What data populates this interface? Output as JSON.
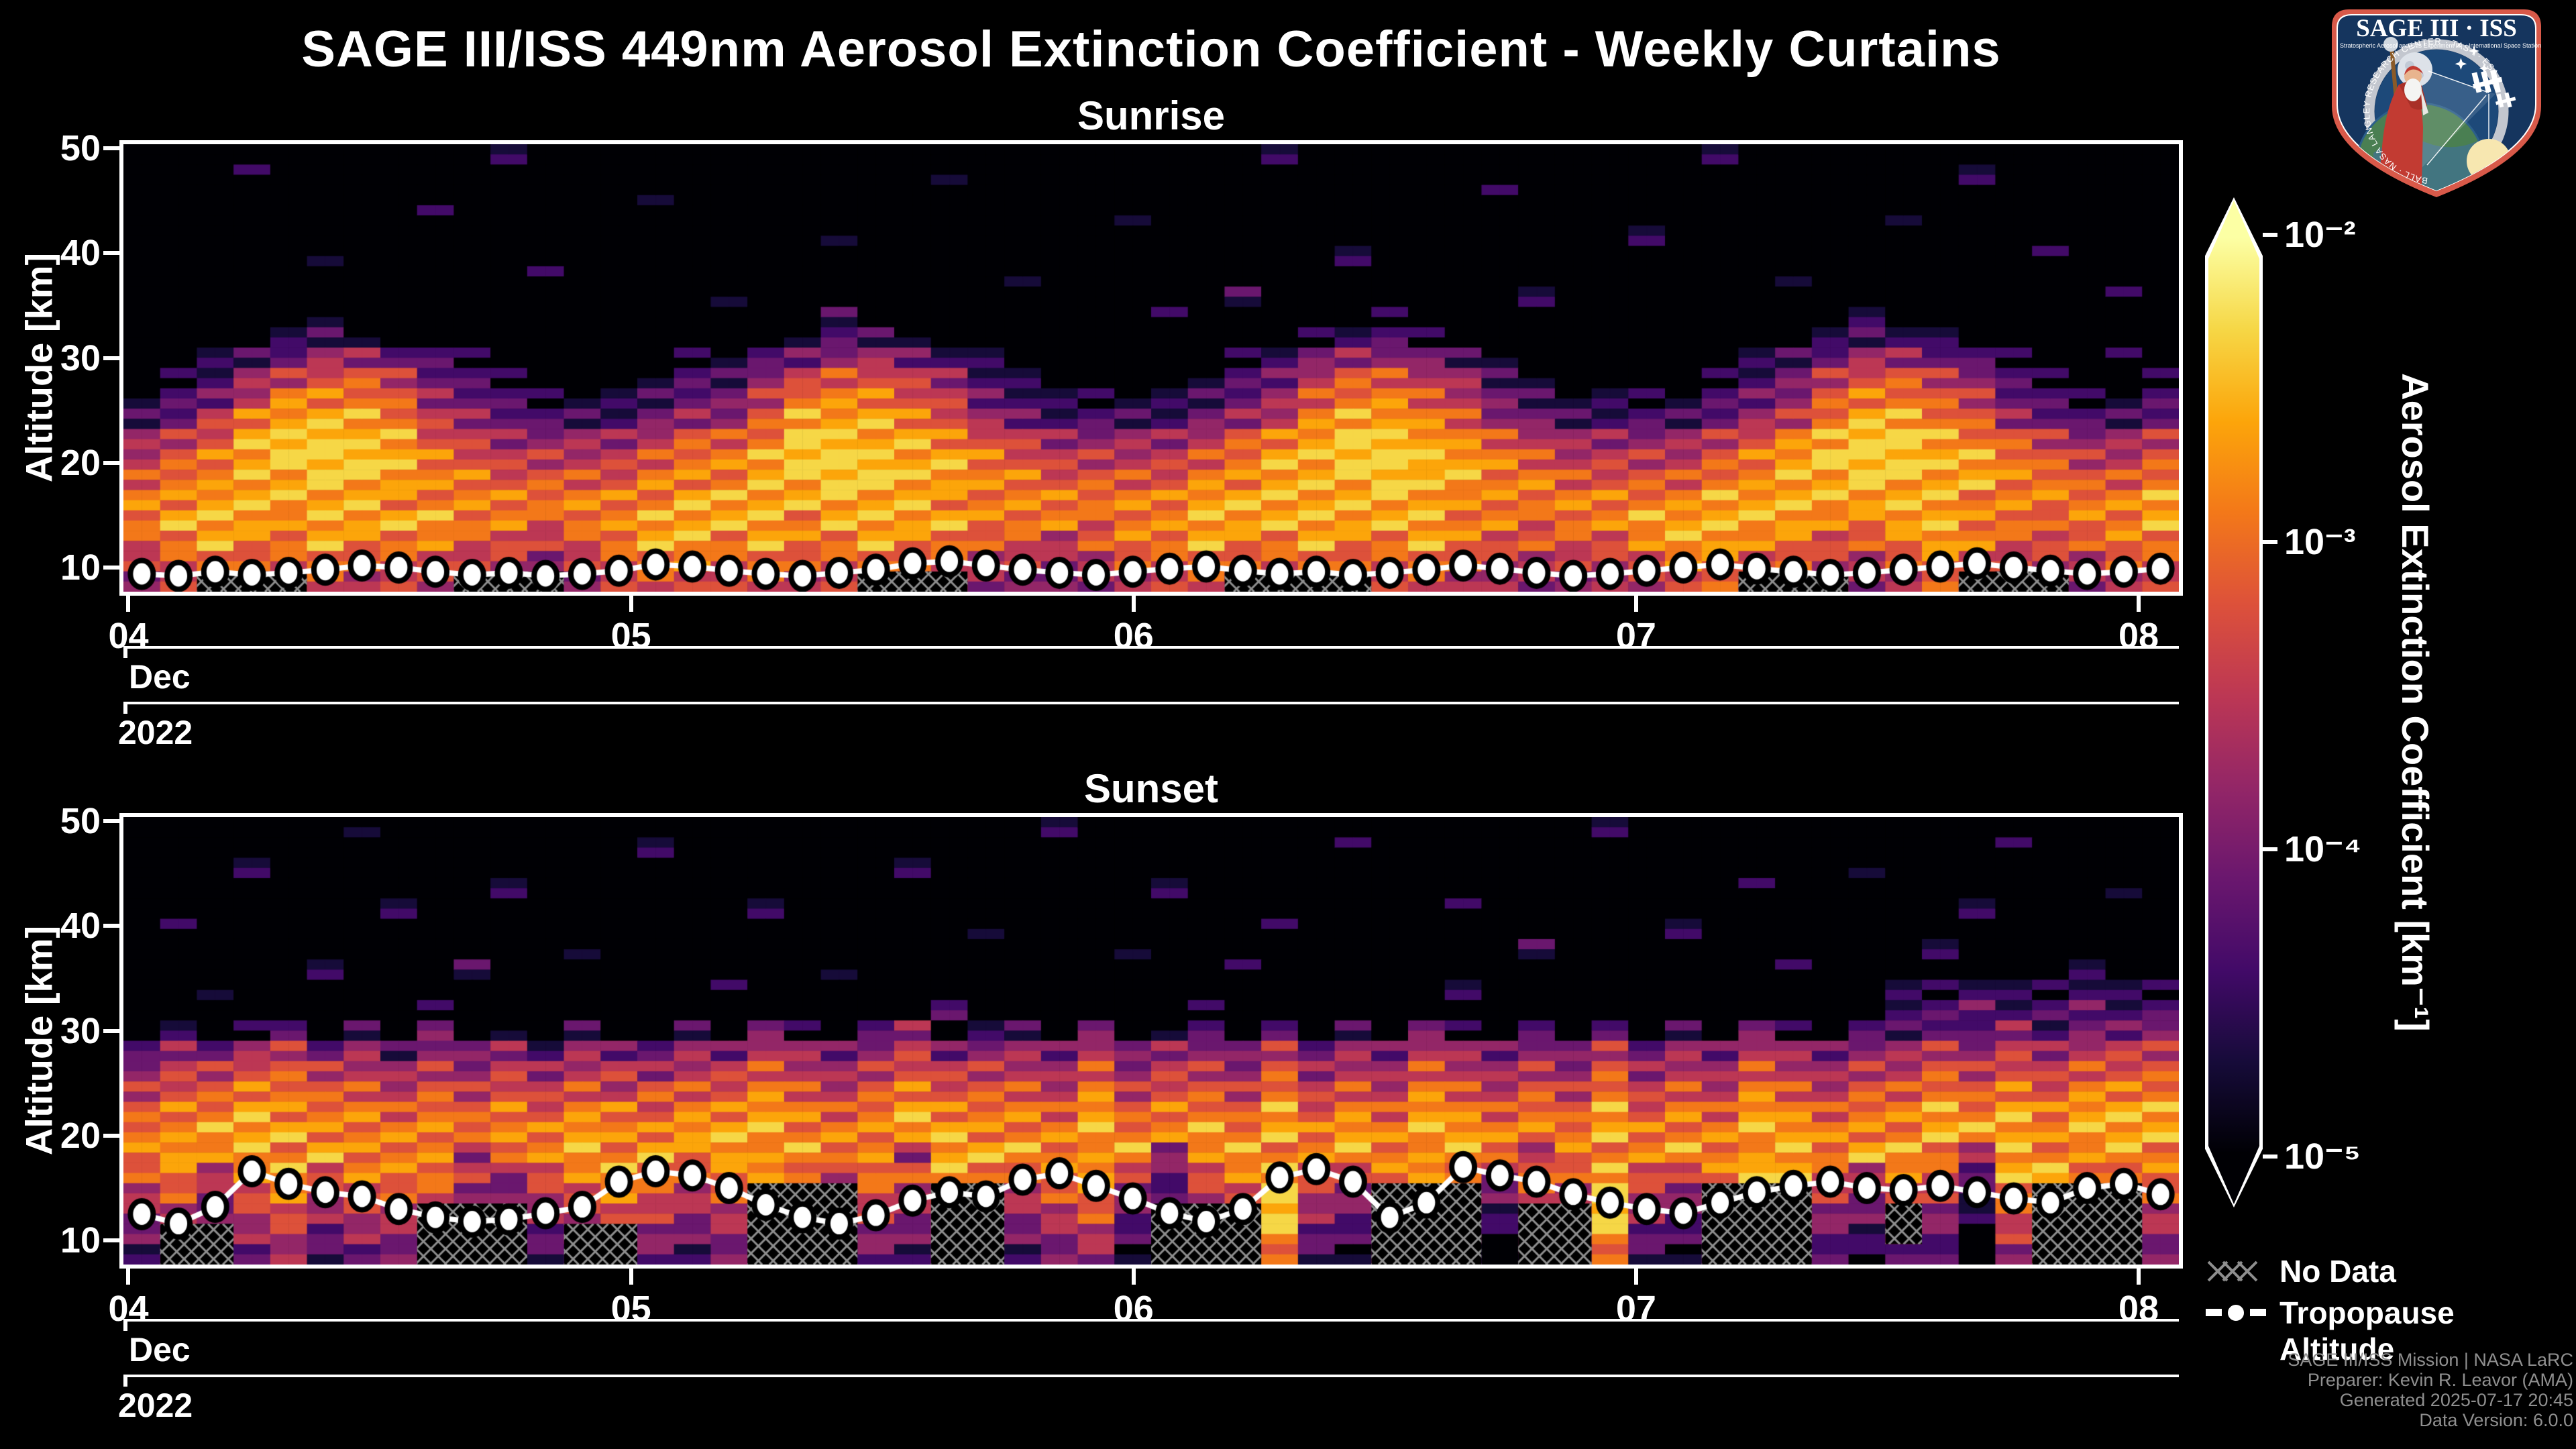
{
  "title": "SAGE III/ISS 449nm Aerosol Extinction Coefficient - Weekly Curtains",
  "panels": [
    {
      "subtitle": "Sunrise",
      "y_label": "Altitude [km]",
      "month_label": "Dec",
      "year_label": "2022",
      "x_tick_labels": [
        "04",
        "05",
        "06",
        "07",
        "08"
      ],
      "y_tick_labels": [
        "10",
        "20",
        "30",
        "40",
        "50"
      ]
    },
    {
      "subtitle": "Sunset",
      "y_label": "Altitude [km]",
      "month_label": "Dec",
      "year_label": "2022",
      "x_tick_labels": [
        "04",
        "05",
        "06",
        "07",
        "08"
      ],
      "y_tick_labels": [
        "10",
        "20",
        "30",
        "40",
        "50"
      ]
    }
  ],
  "colorbar": {
    "label": "Aerosol Extinction Coefficient [km⁻¹]",
    "tick_labels": [
      "10⁻²",
      "10⁻³",
      "10⁻⁴",
      "10⁻⁵"
    ]
  },
  "legend": {
    "items": [
      {
        "symbol": "no-data-hatch",
        "label": "No Data"
      },
      {
        "symbol": "tropopause-marker",
        "label": "Tropopause Altitude"
      }
    ]
  },
  "attribution": [
    "SAGE III/ISS Mission | NASA LaRC",
    "Preparer: Kevin R. Leavor (AMA)",
    "Generated 2025-07-17 20:45",
    "Data Version: 6.0.0"
  ],
  "logo": {
    "title": "SAGE III · ISS",
    "subtitle_left": "Stratospheric Aerosol and Gas Experiment III",
    "subtitle_right": "International Space Station",
    "ring_text": "BALL · NASA LANGLEY RESEARCH CENTER · TAS-I · ESA"
  },
  "chart_config": {
    "colormap": "inferno",
    "palette_10": [
      "#000004",
      "#160b39",
      "#420a68",
      "#6a176e",
      "#932667",
      "#bc3754",
      "#dd513a",
      "#f37819",
      "#fca50a",
      "#f6d746"
    ],
    "hatch_color": "#8e8e8e",
    "background": "#000000",
    "axis_color": "#ffffff",
    "attribution_color": "#8f8f8f"
  },
  "chart_data": [
    {
      "type": "heatmap",
      "title": "Sunrise",
      "x_axis": {
        "domain_days": [
          3.99,
          8.08
        ],
        "ticks": [
          4,
          5,
          6,
          7,
          8
        ],
        "tick_labels": [
          "04",
          "05",
          "06",
          "07",
          "08"
        ],
        "month": "Dec",
        "year": "2022"
      },
      "y_axis": {
        "label": "Altitude [km]",
        "range_km": [
          7.7,
          50.4
        ],
        "ticks": [
          10,
          20,
          30,
          40,
          50
        ]
      },
      "value_scale": {
        "type": "log",
        "units": "km⁻¹",
        "min": 1e-05,
        "max": 0.01,
        "colormap": "inferno"
      },
      "grid": {
        "cols": 56,
        "rows": 22,
        "alt_top_km": 50.4,
        "alt_bottom_km": 7.7,
        "intensity_note": "digit 0-9 maps log-extinction 1e-5(0) to 1e-2(9), palette_10",
        "intensity_rows": [
          "00000000001000000000000000000001000000000001000000000000",
          "00010000000000000000001000000000000000000000000000100000",
          "00000000000000100000000000000000000001000000000000000000",
          "00000000100000000000000000010000000000000000000010000000",
          "00000000000000000001000000000000000000000100000000000000",
          "00000100000000000000000000000000010000000000000000001000",
          "00000000000100000000000010000000000000000000010000000000",
          "00000000000000001000000000000020000000100000000000000010",
          "00000100000000000002000000001000001000000000000200000000",
          "00001210000000000012210000000000122100000000001221000000",
          "00123443210000011234432100000012344321000000123443210010",
          "01245665321000122456654210000123566542100001235665421001",
          "12357776432111233577765321111234677653211112346776532112",
          "23578887543222344688876432222345788764322223457887643223",
          "45689988654444566799887654444567899876544445678998765445",
          "56789998765555677899988765555678899987655556789998876556",
          "67788988776666777889988776666778889887766667788988877667",
          "77888887777777788888887777777888888877777778888888777778",
          "78887888877677888878888777677888888877677888887788776778",
          "67877877766567887877877665677877877876666788776678766677",
          "56766766655456776766766554566766766765555677665567655566",
          "45655655544345665655655443455655655654444566554456544455"
        ]
      },
      "no_data_rects_cols_rows": [
        [
          2,
          4,
          21,
          21
        ],
        [
          9,
          11,
          21,
          21
        ],
        [
          20,
          22,
          21,
          21
        ],
        [
          30,
          33,
          21,
          21
        ],
        [
          44,
          46,
          21,
          21
        ],
        [
          50,
          52,
          21,
          21
        ]
      ],
      "tropopause_km": [
        9.4,
        9.2,
        9.6,
        9.3,
        9.5,
        9.8,
        10.2,
        10.0,
        9.6,
        9.3,
        9.5,
        9.2,
        9.4,
        9.7,
        10.3,
        10.1,
        9.7,
        9.4,
        9.2,
        9.5,
        9.8,
        10.4,
        10.6,
        10.2,
        9.8,
        9.5,
        9.3,
        9.6,
        9.9,
        10.1,
        9.7,
        9.4,
        9.6,
        9.3,
        9.5,
        9.8,
        10.2,
        9.9,
        9.5,
        9.2,
        9.4,
        9.7,
        10.0,
        10.3,
        9.9,
        9.6,
        9.3,
        9.5,
        9.8,
        10.1,
        10.4,
        10.0,
        9.7,
        9.4,
        9.6,
        9.9
      ]
    },
    {
      "type": "heatmap",
      "title": "Sunset",
      "x_axis": {
        "domain_days": [
          3.99,
          8.08
        ],
        "ticks": [
          4,
          5,
          6,
          7,
          8
        ],
        "tick_labels": [
          "04",
          "05",
          "06",
          "07",
          "08"
        ],
        "month": "Dec",
        "year": "2022"
      },
      "y_axis": {
        "label": "Altitude [km]",
        "range_km": [
          7.7,
          50.4
        ],
        "ticks": [
          10,
          20,
          30,
          40,
          50
        ]
      },
      "value_scale": {
        "type": "log",
        "units": "km⁻¹",
        "min": 1e-05,
        "max": 0.01,
        "colormap": "inferno"
      },
      "grid": {
        "cols": 56,
        "rows": 22,
        "alt_top_km": 50.4,
        "alt_bottom_km": 7.7,
        "intensity_note": "digit 0-9 maps log-extinction 1e-5(0) to 1e-2(9), palette_10",
        "intensity_rows": [
          "00000010000000000000000001000000000000001000000000000000",
          "00000000000000100000000000000000010000000000000000010000",
          "00010000000000000000010000000000000000000000000100000000",
          "00000000001000000000000000001000000000000000100000000010",
          "00000002000000000100000000000000000010000000000000100000",
          "01000000000000000000000100000001000000000010000000000000",
          "00000000000010000000000000010000000000200000000001000000",
          "00000100020000000001000000000010000000000000010000000100",
          "00100000000000001000000000000000000010000000000011211211",
          "00000000100000000000002000000100000000000000000022322322",
          "02013020301020020310240120301203020310203020310223242334",
          "24345342434243343543453443534435343543435343543445454555",
          "45566554545455455654565554645546454654546454654556565666",
          "56677665656565666765676665756657565765657565765667676777",
          "67787776767677677876787776867768676876768676876778787888",
          "77888777777787788877788777877878787887778777887778887888",
          "78787877747787878787748887784787787787477787787887487787",
          "67578677754678767865768767853678657864768657986576389767",
          "56467566643567656754657656742569546753659546975465279656",
          "45356455532456545643546545631459435642549435864354169545",
          "34245344421345434532435434520348324531438324753243058434",
          "23134233310234323421324323410236213420326213542132046323"
        ]
      },
      "no_data_rects_cols_rows": [
        [
          1,
          2,
          20,
          21
        ],
        [
          8,
          10,
          19,
          21
        ],
        [
          12,
          13,
          20,
          21
        ],
        [
          17,
          19,
          18,
          21
        ],
        [
          22,
          23,
          18,
          21
        ],
        [
          28,
          30,
          19,
          21
        ],
        [
          34,
          36,
          18,
          21
        ],
        [
          38,
          39,
          19,
          21
        ],
        [
          43,
          45,
          18,
          21
        ],
        [
          48,
          48,
          19,
          20
        ],
        [
          52,
          54,
          18,
          21
        ]
      ],
      "tropopause_km": [
        12.5,
        11.6,
        13.2,
        16.6,
        15.4,
        14.6,
        14.2,
        13.0,
        12.2,
        11.8,
        12.0,
        12.6,
        13.2,
        15.6,
        16.6,
        16.2,
        15.0,
        13.4,
        12.2,
        11.6,
        12.4,
        13.8,
        14.6,
        14.2,
        15.8,
        16.4,
        15.2,
        14.0,
        12.6,
        11.8,
        13.0,
        16.0,
        16.8,
        15.6,
        12.2,
        13.6,
        17.0,
        16.2,
        15.6,
        14.4,
        13.6,
        13.0,
        12.6,
        13.6,
        14.6,
        15.2,
        15.6,
        15.0,
        14.8,
        15.2,
        14.6,
        14.0,
        13.6,
        15.0,
        15.4,
        14.4
      ]
    }
  ]
}
